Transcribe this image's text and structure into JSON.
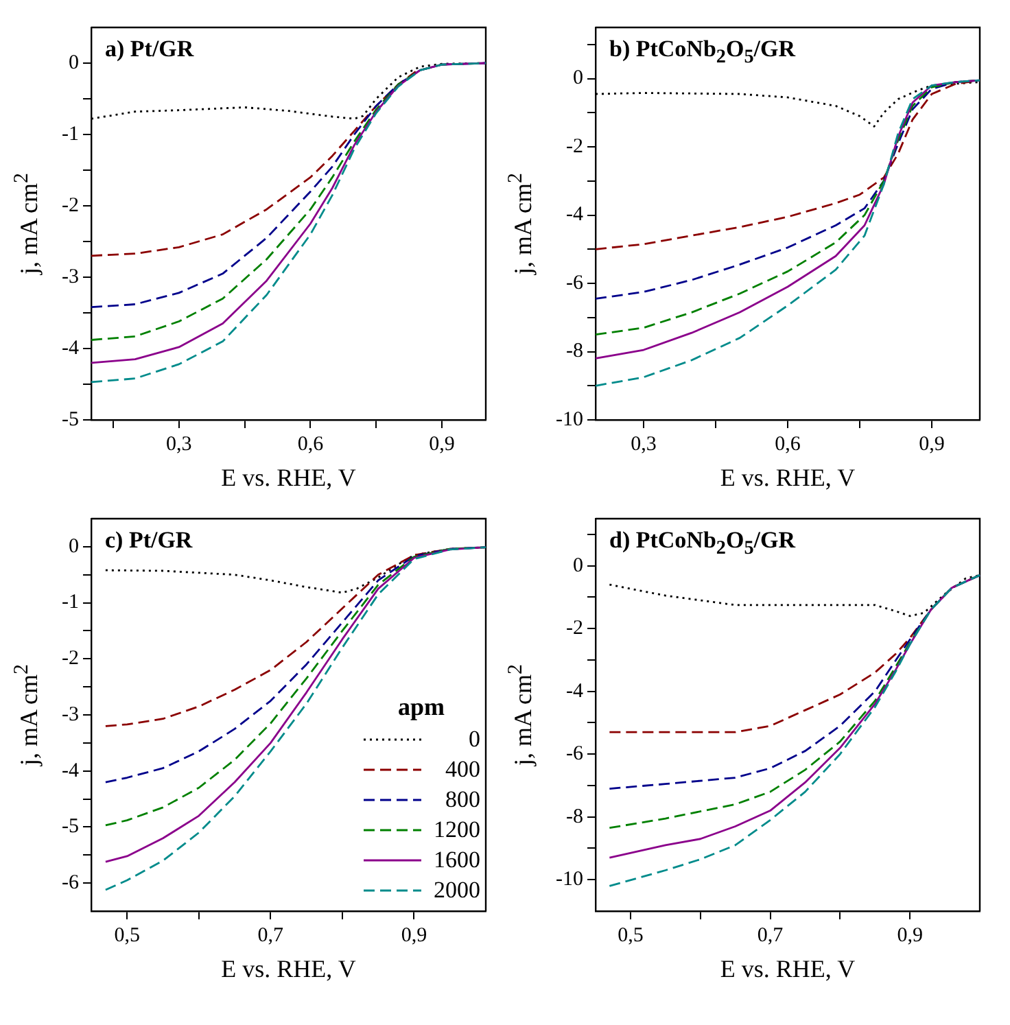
{
  "chart_data": [
    {
      "type": "line",
      "title": "a)  Pt/GR",
      "xlabel": "E vs. RHE, V",
      "ylabel": "j, mA cm$^{2}$",
      "xlim": [
        0.1,
        1.0
      ],
      "ylim": [
        -5,
        0.5
      ],
      "legend": false,
      "marker": "none",
      "xticks": [
        {
          "value": 0.15,
          "label": null
        },
        {
          "value": 0.3,
          "label": "0,3"
        },
        {
          "value": 0.45,
          "label": null
        },
        {
          "value": 0.6,
          "label": "0,6"
        },
        {
          "value": 0.75,
          "label": null
        },
        {
          "value": 0.9,
          "label": "0,9"
        }
      ],
      "yticks": [
        -5,
        {
          "value": -4.5,
          "label": null
        },
        -4,
        {
          "value": -3.5,
          "label": null
        },
        -3,
        {
          "value": -2.5,
          "label": null
        },
        -2,
        {
          "value": -1.5,
          "label": null
        },
        -1,
        {
          "value": -0.5,
          "label": null
        },
        0
      ],
      "series": [
        {
          "color": "#000000",
          "line_style": "dotted",
          "x": [
            0.1,
            0.2,
            0.3,
            0.45,
            0.55,
            0.65,
            0.7,
            0.72,
            0.75,
            0.8,
            0.85,
            0.9,
            1.0
          ],
          "values": [
            -0.78,
            -0.68,
            -0.66,
            -0.62,
            -0.67,
            -0.75,
            -0.78,
            -0.74,
            -0.5,
            -0.2,
            -0.05,
            -0.01,
            0
          ]
        },
        {
          "color": "#8b0000",
          "line_style": "dashed",
          "x": [
            0.1,
            0.2,
            0.3,
            0.4,
            0.5,
            0.6,
            0.65,
            0.7,
            0.75,
            0.8,
            0.84
          ],
          "values": [
            -2.7,
            -2.67,
            -2.58,
            -2.4,
            -2.05,
            -1.6,
            -1.3,
            -0.95,
            -0.6,
            -0.3,
            -0.12
          ]
        },
        {
          "color": "#00008b",
          "line_style": "dashed",
          "x": [
            0.1,
            0.2,
            0.3,
            0.4,
            0.5,
            0.6,
            0.65,
            0.7,
            0.75,
            0.8,
            0.85,
            0.9,
            1.0
          ],
          "values": [
            -3.42,
            -3.38,
            -3.22,
            -2.95,
            -2.45,
            -1.8,
            -1.45,
            -1.0,
            -0.6,
            -0.3,
            -0.1,
            -0.02,
            0
          ]
        },
        {
          "color": "#008000",
          "line_style": "dashed",
          "x": [
            0.1,
            0.2,
            0.3,
            0.4,
            0.5,
            0.6,
            0.65,
            0.7,
            0.75,
            0.8,
            0.85,
            0.9,
            1.0
          ],
          "values": [
            -3.88,
            -3.83,
            -3.62,
            -3.3,
            -2.75,
            -2.05,
            -1.6,
            -1.1,
            -0.65,
            -0.3,
            -0.1,
            -0.02,
            0
          ]
        },
        {
          "color": "#8b008b",
          "line_style": "solid",
          "x": [
            0.1,
            0.2,
            0.3,
            0.4,
            0.5,
            0.6,
            0.65,
            0.7,
            0.75,
            0.8,
            0.85,
            0.9,
            1.0
          ],
          "values": [
            -4.2,
            -4.15,
            -3.98,
            -3.65,
            -3.05,
            -2.25,
            -1.75,
            -1.15,
            -0.68,
            -0.32,
            -0.1,
            -0.02,
            0
          ]
        },
        {
          "color": "#008b8b",
          "line_style": "dashed",
          "x": [
            0.1,
            0.2,
            0.3,
            0.4,
            0.5,
            0.6,
            0.65,
            0.7,
            0.75,
            0.8,
            0.85,
            0.9,
            1.0
          ],
          "values": [
            -4.47,
            -4.42,
            -4.22,
            -3.9,
            -3.25,
            -2.4,
            -1.85,
            -1.2,
            -0.7,
            -0.33,
            -0.1,
            -0.02,
            0
          ]
        }
      ]
    },
    {
      "type": "line",
      "title": "b)  PtCoNb$_{2}$O$_{5}$/GR",
      "xlabel": "E vs. RHE, V",
      "ylabel": "j, mA cm$^{2}$",
      "xlim": [
        0.2,
        1.0
      ],
      "ylim": [
        -10,
        1.5
      ],
      "legend": false,
      "marker": "none",
      "xticks": [
        {
          "value": 0.3,
          "label": "0,3"
        },
        {
          "value": 0.45,
          "label": null
        },
        {
          "value": 0.6,
          "label": "0,6"
        },
        {
          "value": 0.75,
          "label": null
        },
        {
          "value": 0.9,
          "label": "0,9"
        }
      ],
      "yticks": [
        -10,
        {
          "value": -9,
          "label": null
        },
        -8,
        {
          "value": -7,
          "label": null
        },
        -6,
        {
          "value": -5,
          "label": null
        },
        -4,
        {
          "value": -3,
          "label": null
        },
        -2,
        {
          "value": -1,
          "label": null
        },
        0,
        {
          "value": 1,
          "label": null
        }
      ],
      "series": [
        {
          "color": "#000000",
          "line_style": "dotted",
          "x": [
            0.2,
            0.3,
            0.5,
            0.6,
            0.7,
            0.75,
            0.78,
            0.8,
            0.83,
            0.87,
            0.9,
            1.0
          ],
          "values": [
            -0.45,
            -0.42,
            -0.45,
            -0.55,
            -0.8,
            -1.1,
            -1.4,
            -1.0,
            -0.6,
            -0.35,
            -0.2,
            -0.1
          ]
        },
        {
          "color": "#8b0000",
          "line_style": "dashed",
          "x": [
            0.2,
            0.3,
            0.4,
            0.5,
            0.6,
            0.7,
            0.75,
            0.8,
            0.83,
            0.86,
            0.9,
            0.95,
            1.0
          ],
          "values": [
            -5.0,
            -4.85,
            -4.6,
            -4.35,
            -4.05,
            -3.65,
            -3.4,
            -2.9,
            -2.2,
            -1.2,
            -0.45,
            -0.15,
            -0.05
          ]
        },
        {
          "color": "#00008b",
          "line_style": "dashed",
          "x": [
            0.2,
            0.3,
            0.4,
            0.5,
            0.6,
            0.7,
            0.76,
            0.8,
            0.83,
            0.86,
            0.9,
            0.95,
            1.0
          ],
          "values": [
            -6.45,
            -6.25,
            -5.9,
            -5.45,
            -4.95,
            -4.3,
            -3.8,
            -3.0,
            -1.9,
            -0.9,
            -0.3,
            -0.1,
            -0.05
          ]
        },
        {
          "color": "#008000",
          "line_style": "dashed",
          "x": [
            0.2,
            0.3,
            0.4,
            0.5,
            0.6,
            0.7,
            0.76,
            0.8,
            0.83,
            0.86,
            0.9,
            0.95,
            1.0
          ],
          "values": [
            -7.5,
            -7.3,
            -6.85,
            -6.3,
            -5.65,
            -4.8,
            -4.0,
            -3.0,
            -1.8,
            -0.8,
            -0.25,
            -0.1,
            -0.05
          ]
        },
        {
          "color": "#8b008b",
          "line_style": "solid",
          "x": [
            0.2,
            0.3,
            0.4,
            0.5,
            0.6,
            0.7,
            0.76,
            0.8,
            0.83,
            0.86,
            0.9,
            0.95,
            1.0
          ],
          "values": [
            -8.2,
            -7.95,
            -7.45,
            -6.85,
            -6.1,
            -5.2,
            -4.3,
            -3.1,
            -1.7,
            -0.7,
            -0.2,
            -0.1,
            -0.05
          ]
        },
        {
          "color": "#008b8b",
          "line_style": "dashed",
          "x": [
            0.2,
            0.3,
            0.4,
            0.5,
            0.6,
            0.7,
            0.76,
            0.8,
            0.83,
            0.86,
            0.9,
            0.95,
            1.0
          ],
          "values": [
            -9.0,
            -8.75,
            -8.25,
            -7.6,
            -6.65,
            -5.6,
            -4.6,
            -3.1,
            -1.6,
            -0.6,
            -0.2,
            -0.1,
            -0.05
          ]
        }
      ]
    },
    {
      "type": "line",
      "title": "c)  Pt/GR",
      "xlabel": "E vs. RHE, V",
      "ylabel": "j, mA cm$^{2}$",
      "xlim": [
        0.45,
        1.0
      ],
      "ylim": [
        -6.5,
        0.5
      ],
      "legend": "bottom right",
      "legend_title": "apm",
      "marker": "none",
      "xticks": [
        {
          "value": 0.5,
          "label": "0,5"
        },
        {
          "value": 0.6,
          "label": null
        },
        {
          "value": 0.7,
          "label": "0,7"
        },
        {
          "value": 0.8,
          "label": null
        },
        {
          "value": 0.9,
          "label": "0,9"
        }
      ],
      "yticks": [
        -6,
        {
          "value": -5.5,
          "label": null
        },
        -5,
        {
          "value": -4.5,
          "label": null
        },
        -4,
        {
          "value": -3.5,
          "label": null
        },
        -3,
        {
          "value": -2.5,
          "label": null
        },
        -2,
        {
          "value": -1.5,
          "label": null
        },
        -1,
        {
          "value": -0.5,
          "label": null
        },
        0
      ],
      "series": [
        {
          "name": "0",
          "color": "#000000",
          "line_style": "dotted",
          "x": [
            0.47,
            0.55,
            0.65,
            0.7,
            0.75,
            0.8,
            0.82,
            0.85,
            0.88,
            0.9,
            0.95,
            1.0
          ],
          "values": [
            -0.42,
            -0.43,
            -0.5,
            -0.6,
            -0.72,
            -0.82,
            -0.75,
            -0.55,
            -0.3,
            -0.15,
            -0.04,
            -0.01
          ]
        },
        {
          "name": "400",
          "color": "#8b0000",
          "line_style": "dashed",
          "x": [
            0.47,
            0.5,
            0.55,
            0.6,
            0.65,
            0.7,
            0.75,
            0.8,
            0.85,
            0.9,
            0.95,
            1.0
          ],
          "values": [
            -3.2,
            -3.17,
            -3.07,
            -2.85,
            -2.55,
            -2.2,
            -1.7,
            -1.1,
            -0.5,
            -0.15,
            -0.04,
            -0.01
          ]
        },
        {
          "name": "800",
          "color": "#00008b",
          "line_style": "dashed",
          "x": [
            0.47,
            0.5,
            0.55,
            0.6,
            0.65,
            0.7,
            0.75,
            0.8,
            0.85,
            0.9,
            0.95,
            1.0
          ],
          "values": [
            -4.2,
            -4.12,
            -3.95,
            -3.65,
            -3.25,
            -2.75,
            -2.1,
            -1.35,
            -0.6,
            -0.17,
            -0.04,
            -0.01
          ]
        },
        {
          "name": "1200",
          "color": "#008000",
          "line_style": "dashed",
          "x": [
            0.47,
            0.5,
            0.55,
            0.6,
            0.65,
            0.7,
            0.75,
            0.8,
            0.85,
            0.9,
            0.95,
            1.0
          ],
          "values": [
            -4.97,
            -4.88,
            -4.65,
            -4.3,
            -3.8,
            -3.15,
            -2.35,
            -1.5,
            -0.68,
            -0.18,
            -0.04,
            -0.01
          ]
        },
        {
          "name": "1600",
          "color": "#8b008b",
          "line_style": "solid",
          "x": [
            0.47,
            0.5,
            0.55,
            0.6,
            0.65,
            0.7,
            0.75,
            0.8,
            0.85,
            0.9,
            0.95,
            1.0
          ],
          "values": [
            -5.62,
            -5.52,
            -5.2,
            -4.8,
            -4.2,
            -3.5,
            -2.6,
            -1.65,
            -0.75,
            -0.2,
            -0.05,
            -0.01
          ]
        },
        {
          "name": "2000",
          "color": "#008b8b",
          "line_style": "dashed",
          "x": [
            0.47,
            0.5,
            0.55,
            0.6,
            0.65,
            0.7,
            0.75,
            0.8,
            0.85,
            0.9,
            0.95,
            1.0
          ],
          "values": [
            -6.12,
            -5.95,
            -5.6,
            -5.1,
            -4.45,
            -3.65,
            -2.8,
            -1.8,
            -0.85,
            -0.22,
            -0.05,
            -0.01
          ]
        }
      ]
    },
    {
      "type": "line",
      "title": "d)  PtCoNb$_{2}$O$_{5}$/GR",
      "xlabel": "E vs. RHE, V",
      "ylabel": "j, mA cm$^{2}$",
      "xlim": [
        0.45,
        1.0
      ],
      "ylim": [
        -11,
        1.5
      ],
      "legend": false,
      "marker": "none",
      "xticks": [
        {
          "value": 0.5,
          "label": "0,5"
        },
        {
          "value": 0.6,
          "label": null
        },
        {
          "value": 0.7,
          "label": "0,7"
        },
        {
          "value": 0.8,
          "label": null
        },
        {
          "value": 0.9,
          "label": "0,9"
        }
      ],
      "yticks": [
        -10,
        {
          "value": -9,
          "label": null
        },
        -8,
        {
          "value": -7,
          "label": null
        },
        -6,
        {
          "value": -5,
          "label": null
        },
        -4,
        {
          "value": -3,
          "label": null
        },
        -2,
        {
          "value": -1,
          "label": null
        },
        0,
        {
          "value": 1,
          "label": null
        }
      ],
      "series": [
        {
          "color": "#000000",
          "line_style": "dotted",
          "x": [
            0.47,
            0.55,
            0.65,
            0.75,
            0.85,
            0.88,
            0.9,
            0.92,
            0.95,
            0.98,
            1.0
          ],
          "values": [
            -0.6,
            -0.95,
            -1.25,
            -1.25,
            -1.25,
            -1.45,
            -1.6,
            -1.5,
            -0.9,
            -0.4,
            -0.3
          ]
        },
        {
          "color": "#8b0000",
          "line_style": "dashed",
          "x": [
            0.47,
            0.55,
            0.65,
            0.7,
            0.75,
            0.8,
            0.85,
            0.88,
            0.9,
            0.93,
            0.96,
            1.0
          ],
          "values": [
            -5.3,
            -5.3,
            -5.3,
            -5.1,
            -4.6,
            -4.1,
            -3.4,
            -2.8,
            -2.3,
            -1.4,
            -0.7,
            -0.3
          ]
        },
        {
          "color": "#00008b",
          "line_style": "dashed",
          "x": [
            0.47,
            0.55,
            0.65,
            0.7,
            0.75,
            0.8,
            0.85,
            0.88,
            0.9,
            0.93,
            0.96,
            1.0
          ],
          "values": [
            -7.1,
            -6.95,
            -6.75,
            -6.45,
            -5.9,
            -5.1,
            -4.0,
            -3.0,
            -2.35,
            -1.4,
            -0.7,
            -0.3
          ]
        },
        {
          "color": "#008000",
          "line_style": "dashed",
          "x": [
            0.47,
            0.55,
            0.65,
            0.7,
            0.75,
            0.8,
            0.85,
            0.88,
            0.9,
            0.93,
            0.96,
            1.0
          ],
          "values": [
            -8.35,
            -8.05,
            -7.6,
            -7.2,
            -6.5,
            -5.6,
            -4.3,
            -3.2,
            -2.45,
            -1.4,
            -0.7,
            -0.3
          ]
        },
        {
          "color": "#8b008b",
          "line_style": "solid",
          "x": [
            0.47,
            0.55,
            0.6,
            0.65,
            0.7,
            0.75,
            0.8,
            0.85,
            0.88,
            0.9,
            0.93,
            0.96,
            1.0
          ],
          "values": [
            -9.3,
            -8.9,
            -8.7,
            -8.3,
            -7.8,
            -6.9,
            -5.8,
            -4.4,
            -3.3,
            -2.5,
            -1.4,
            -0.7,
            -0.3
          ]
        },
        {
          "color": "#008b8b",
          "line_style": "dashed",
          "x": [
            0.47,
            0.55,
            0.6,
            0.65,
            0.7,
            0.75,
            0.8,
            0.85,
            0.88,
            0.9,
            0.93,
            0.96,
            1.0
          ],
          "values": [
            -10.2,
            -9.7,
            -9.35,
            -8.9,
            -8.1,
            -7.2,
            -6.0,
            -4.5,
            -3.35,
            -2.5,
            -1.4,
            -0.7,
            -0.3
          ]
        }
      ]
    }
  ]
}
